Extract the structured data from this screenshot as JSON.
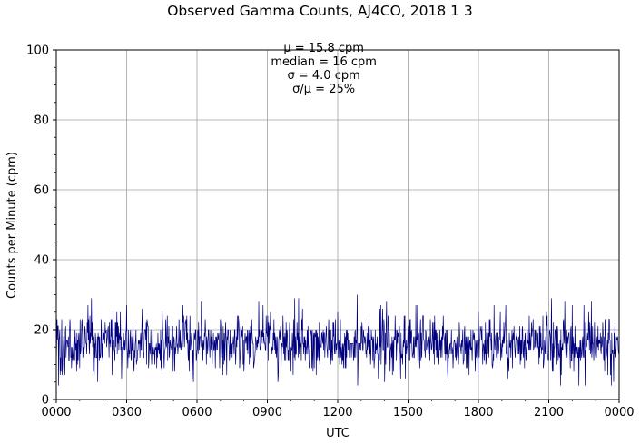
{
  "chart_data": {
    "type": "line",
    "title": "Observed Gamma Counts, AJ4CO, 2018 1 3",
    "subtitle_stats": [
      "μ = 15.8 cpm",
      "median = 16 cpm",
      "σ = 4.0 cpm",
      "σ/μ = 25%"
    ],
    "xlabel": "UTC",
    "ylabel": "Counts per Minute (cpm)",
    "x_tick_labels": [
      "0000",
      "0300",
      "0600",
      "0900",
      "1200",
      "1500",
      "1800",
      "2100",
      "0000"
    ],
    "y_tick_labels": [
      "0",
      "20",
      "40",
      "60",
      "80",
      "100"
    ],
    "ylim": [
      0,
      100
    ],
    "xlim_hours": [
      0,
      24
    ],
    "grid": true,
    "series": [
      {
        "color": "#00007f",
        "sample_interval_minutes": 1,
        "values_summary": {
          "mean": 15.8,
          "median": 16,
          "std": 4.0,
          "min": 4,
          "max": 30
        },
        "notable_points": [
          {
            "x": "01:30",
            "y": 29
          },
          {
            "x": "03:00",
            "y": 27
          },
          {
            "x": "03:40",
            "y": 26
          },
          {
            "x": "04:40",
            "y": 23
          },
          {
            "x": "10:10",
            "y": 29
          },
          {
            "x": "10:20",
            "y": 29
          },
          {
            "x": "10:30",
            "y": 26
          },
          {
            "x": "12:00",
            "y": 25
          },
          {
            "x": "12:50",
            "y": 30
          },
          {
            "x": "13:50",
            "y": 27
          },
          {
            "x": "14:00",
            "y": 5
          },
          {
            "x": "15:20",
            "y": 27
          },
          {
            "x": "18:00",
            "y": 25
          },
          {
            "x": "18:40",
            "y": 27
          },
          {
            "x": "19:10",
            "y": 27
          },
          {
            "x": "21:30",
            "y": 4
          },
          {
            "x": "22:00",
            "y": 27
          },
          {
            "x": "22:30",
            "y": 27
          },
          {
            "x": "00:15",
            "y": 7
          },
          {
            "x": "08:00",
            "y": 8
          }
        ]
      }
    ]
  }
}
